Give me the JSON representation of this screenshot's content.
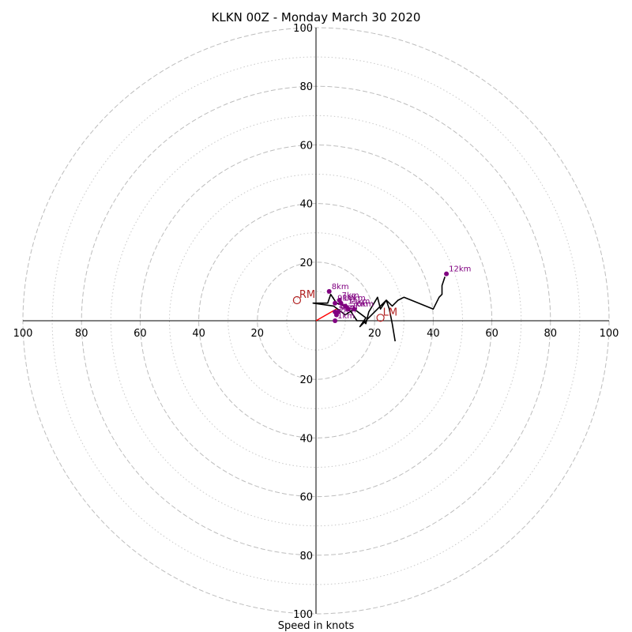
{
  "chart_data": {
    "type": "hodograph",
    "title": "KLKN 00Z - Monday March 30 2020",
    "xlabel": "Speed in knots",
    "range_max": 100,
    "major_rings": [
      20,
      40,
      60,
      80,
      100
    ],
    "minor_rings": [
      10,
      30,
      50,
      70,
      90
    ],
    "tick_labels": {
      "x_left": [
        "100",
        "80",
        "60",
        "40",
        "20"
      ],
      "x_right": [
        "20",
        "40",
        "60",
        "80",
        "100"
      ],
      "y_top": [
        "100",
        "80",
        "60",
        "40",
        "20"
      ],
      "y_bottom": [
        "20",
        "40",
        "60",
        "80",
        "100"
      ]
    },
    "hodograph_line": {
      "color": "#000000",
      "points": [
        [
          27,
          -7
        ],
        [
          26,
          -1
        ],
        [
          25,
          4
        ],
        [
          24,
          7
        ],
        [
          22,
          4
        ],
        [
          21,
          8
        ],
        [
          18,
          3
        ],
        [
          17,
          -1
        ],
        [
          16,
          0
        ],
        [
          14,
          0
        ],
        [
          12,
          3
        ],
        [
          10,
          5
        ],
        [
          7,
          6
        ],
        [
          5,
          9
        ],
        [
          4,
          6
        ],
        [
          0,
          6
        ],
        [
          -1,
          6
        ],
        [
          6,
          5
        ],
        [
          10,
          2
        ],
        [
          13,
          4
        ],
        [
          17,
          1
        ],
        [
          15,
          -2
        ],
        [
          24,
          7
        ],
        [
          26,
          5
        ],
        [
          27,
          6
        ],
        [
          28,
          7
        ],
        [
          30,
          8
        ],
        [
          35,
          6
        ],
        [
          40,
          4
        ],
        [
          42,
          8
        ],
        [
          43,
          9
        ],
        [
          43,
          12
        ],
        [
          44,
          15
        ]
      ]
    },
    "height_markers": {
      "color": "#800080",
      "points": [
        {
          "label": "8km",
          "u": 4.5,
          "v": 10
        },
        {
          "label": "7km",
          "u": 8,
          "v": 7
        },
        {
          "label": "9km",
          "u": 6.5,
          "v": 6
        },
        {
          "label": "10km",
          "u": 8.5,
          "v": 6
        },
        {
          "label": "11km",
          "u": 10,
          "v": 5
        },
        {
          "label": "5km",
          "u": 11,
          "v": 4
        },
        {
          "label": "6km",
          "u": 13,
          "v": 4
        },
        {
          "label": "4km",
          "u": 7.5,
          "v": 3
        },
        {
          "label": "3km",
          "u": 6.5,
          "v": 3
        },
        {
          "label": "2km",
          "u": 7,
          "v": 2
        },
        {
          "label": "1km",
          "u": 6.5,
          "v": 0
        },
        {
          "label": "12km",
          "u": 44.5,
          "v": 16
        }
      ]
    },
    "storm_motion": {
      "color": "#b22222",
      "shear_vector": {
        "color": "#ff0000",
        "from": [
          0,
          0
        ],
        "to": [
          7,
          4
        ]
      },
      "markers": [
        {
          "label": "RM",
          "u": -6.5,
          "v": 7
        },
        {
          "label": "LM",
          "u": 22,
          "v": 1
        }
      ]
    }
  }
}
